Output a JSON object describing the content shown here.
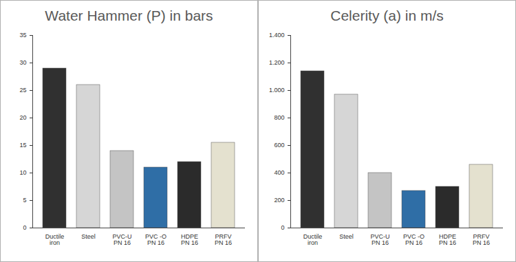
{
  "chart_data": [
    {
      "type": "bar",
      "title": "Water Hammer (P) in bars",
      "categories": [
        "Ductile\niron",
        "Steel",
        "PVC-U\nPN 16",
        "PVC -O\nPN 16",
        "HDPE\nPN 16",
        "PRFV\nPN 16"
      ],
      "values": [
        29,
        26,
        14,
        11,
        12,
        15.5
      ],
      "colors": [
        "#303030",
        "#d6d6d6",
        "#c4c4c4",
        "#2f6ea6",
        "#2b2b2b",
        "#e4e1cf"
      ],
      "ylim": [
        0,
        35
      ],
      "yticks": [
        0,
        5,
        10,
        15,
        20,
        25,
        30,
        35
      ],
      "grid": false
    },
    {
      "type": "bar",
      "title": "Celerity (a) in m/s",
      "categories": [
        "Ductile\niron",
        "Steel",
        "PVC-U\nPN 16",
        "PVC -O\nPN 16",
        "HDPE\nPN 16",
        "PRFV\nPN 16"
      ],
      "values": [
        1140,
        970,
        400,
        270,
        300,
        460
      ],
      "colors": [
        "#303030",
        "#d6d6d6",
        "#c4c4c4",
        "#2f6ea6",
        "#2b2b2b",
        "#e4e1cf"
      ],
      "ylim": [
        0,
        1400
      ],
      "yticks": [
        0,
        200,
        400,
        600,
        800,
        {
          "value": 1000,
          "label": "1.000"
        },
        {
          "value": 1200,
          "label": "1.200"
        },
        {
          "value": 1400,
          "label": "1.400"
        }
      ],
      "grid": false
    }
  ]
}
